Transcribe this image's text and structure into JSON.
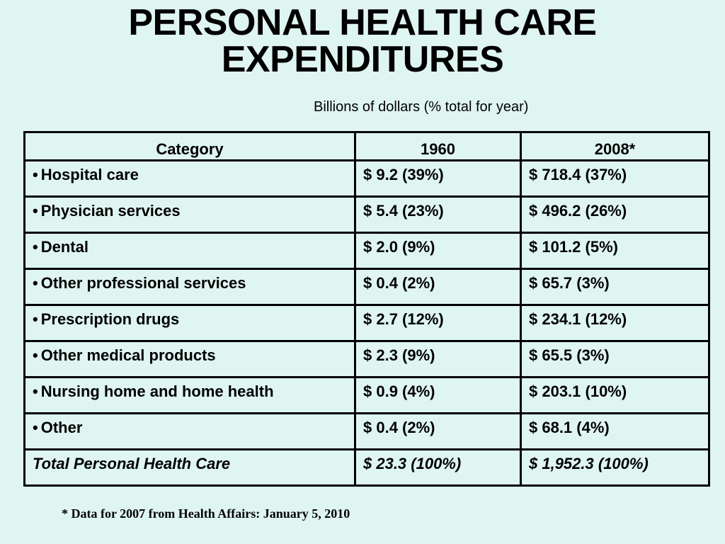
{
  "title_line1": "PERSONAL HEALTH CARE",
  "title_line2": "EXPENDITURES",
  "subtitle": "Billions of dollars (% total for year)",
  "table": {
    "headers": [
      "Category",
      "1960",
      "2008*"
    ],
    "bullet": "•",
    "rows": [
      {
        "category": "Hospital care",
        "y1960": "$ 9.2   (39%)",
        "y2008": "$ 718.4   (37%)"
      },
      {
        "category": "Physician services",
        "y1960": "$ 5.4   (23%)",
        "y2008": "$ 496.2   (26%)"
      },
      {
        "category": "Dental",
        "y1960": "$ 2.0   (9%)",
        "y2008": "$ 101.2    (5%)"
      },
      {
        "category": "Other professional services",
        "y1960": "$ 0.4   (2%)",
        "y2008": "$  65.7    (3%)"
      },
      {
        "category": "Prescription drugs",
        "y1960": "$ 2.7   (12%)",
        "y2008": "$ 234.1   (12%)"
      },
      {
        "category": "Other medical products",
        "y1960": "$ 2.3   (9%)",
        "y2008": "$  65.5    (3%)"
      },
      {
        "category": "Nursing home and home health",
        "y1960": "$ 0.9   (4%)",
        "y2008": "$ 203.1   (10%)"
      },
      {
        "category": "Other",
        "y1960": "$ 0.4   (2%)",
        "y2008": "$  68.1    (4%)"
      }
    ],
    "total": {
      "category": "Total Personal Health Care",
      "y1960": "$ 23.3 (100%)",
      "y2008": "$ 1,952.3  (100%)"
    }
  },
  "footnote": "* Data for 2007 from Health Affairs: January 5, 2010"
}
